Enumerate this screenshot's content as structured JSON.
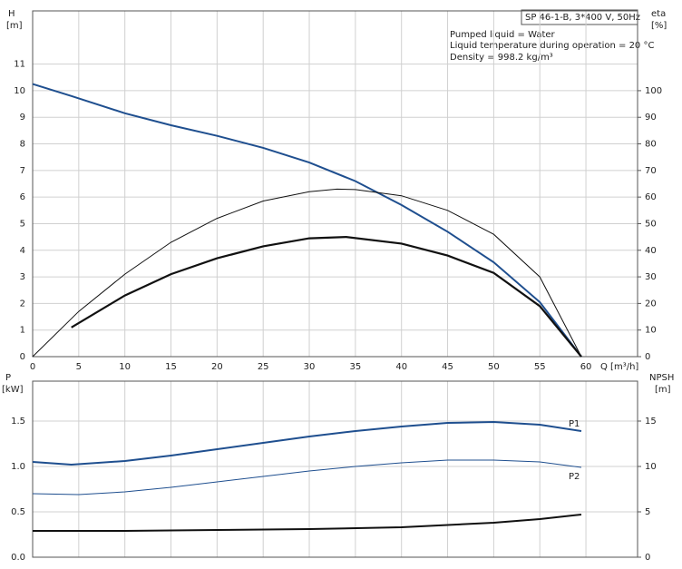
{
  "chart_data": [
    {
      "type": "line",
      "info_box": "SP 46-1-B, 3*400 V, 50Hz",
      "notes": [
        "Pumped liquid = Water",
        "Liquid temperature during operation = 20 °C",
        "Density = 998.2 kg/m³"
      ],
      "y_label": "H",
      "y_unit": "[m]",
      "y2_label": "eta",
      "y2_unit": "[%]",
      "x_label": "Q [m³/h]",
      "xlim": [
        0,
        65.6
      ],
      "xticks": [
        0,
        5,
        10,
        15,
        20,
        25,
        30,
        35,
        40,
        45,
        50,
        55,
        60
      ],
      "ylim": [
        0,
        13
      ],
      "yticks": [
        0,
        1,
        2,
        3,
        4,
        5,
        6,
        7,
        8,
        9,
        10,
        11
      ],
      "y2lim": [
        0,
        130
      ],
      "y2ticks": [
        0,
        10,
        20,
        30,
        40,
        50,
        60,
        70,
        80,
        90,
        100
      ],
      "grid": true,
      "series": [
        {
          "color": "#1f4f8f",
          "width": 2,
          "x": [
            0,
            4.2,
            10,
            15,
            20,
            25,
            30,
            35,
            40,
            45,
            50,
            55,
            59.5
          ],
          "values": [
            10.25,
            9.8,
            9.15,
            8.7,
            8.3,
            7.85,
            7.3,
            6.6,
            5.7,
            4.7,
            3.55,
            2.05,
            0
          ]
        },
        {
          "color": "#111111",
          "width": 1,
          "axis": "y2",
          "x": [
            0,
            5,
            10,
            15,
            20,
            25,
            30,
            33,
            35,
            40,
            45,
            50,
            55,
            59.5
          ],
          "values": [
            0,
            17,
            31,
            43,
            52,
            58.5,
            62,
            63,
            62.8,
            60.5,
            55,
            46,
            30,
            0
          ]
        },
        {
          "color": "#111111",
          "width": 2.2,
          "axis": "y2",
          "x": [
            4.2,
            10,
            15,
            20,
            25,
            30,
            34,
            40,
            45,
            50,
            55,
            59.5
          ],
          "values": [
            11,
            23,
            31,
            37,
            41.5,
            44.5,
            45,
            42.5,
            38,
            31.5,
            19,
            0
          ]
        }
      ]
    },
    {
      "type": "line",
      "y_label": "P",
      "y_unit": "[kW]",
      "y2_label": "NPSH",
      "y2_unit": "[m]",
      "xlim": [
        0,
        65.6
      ],
      "xticks": [
        0,
        5,
        10,
        15,
        20,
        25,
        30,
        35,
        40,
        45,
        50,
        55,
        60
      ],
      "ylim": [
        0,
        1.94
      ],
      "yticks": [
        {
          "value": 0,
          "label": "0.0"
        },
        0.5,
        {
          "value": 1,
          "label": "1.0"
        },
        1.5
      ],
      "y2lim": [
        0,
        19.4
      ],
      "y2ticks": [
        0,
        5,
        10,
        15
      ],
      "grid": true,
      "series": [
        {
          "name": "P1",
          "color": "#1f4f8f",
          "width": 2,
          "x": [
            0,
            4.2,
            10,
            15,
            20,
            25,
            30,
            35,
            40,
            45,
            50,
            55,
            59.5
          ],
          "values": [
            1.05,
            1.02,
            1.06,
            1.12,
            1.19,
            1.26,
            1.33,
            1.39,
            1.44,
            1.48,
            1.49,
            1.46,
            1.39
          ]
        },
        {
          "name": "P2",
          "color": "#1f4f8f",
          "width": 1,
          "x": [
            0,
            5,
            10,
            15,
            20,
            25,
            30,
            35,
            40,
            45,
            50,
            55,
            59.5
          ],
          "values": [
            0.7,
            0.69,
            0.72,
            0.77,
            0.83,
            0.89,
            0.95,
            1.0,
            1.04,
            1.07,
            1.07,
            1.05,
            0.99
          ]
        },
        {
          "color": "#111111",
          "width": 2,
          "axis": "y2",
          "x": [
            0,
            10,
            20,
            30,
            40,
            50,
            55,
            59.5
          ],
          "values": [
            2.9,
            2.9,
            3.0,
            3.1,
            3.3,
            3.8,
            4.2,
            4.7
          ]
        }
      ]
    }
  ]
}
